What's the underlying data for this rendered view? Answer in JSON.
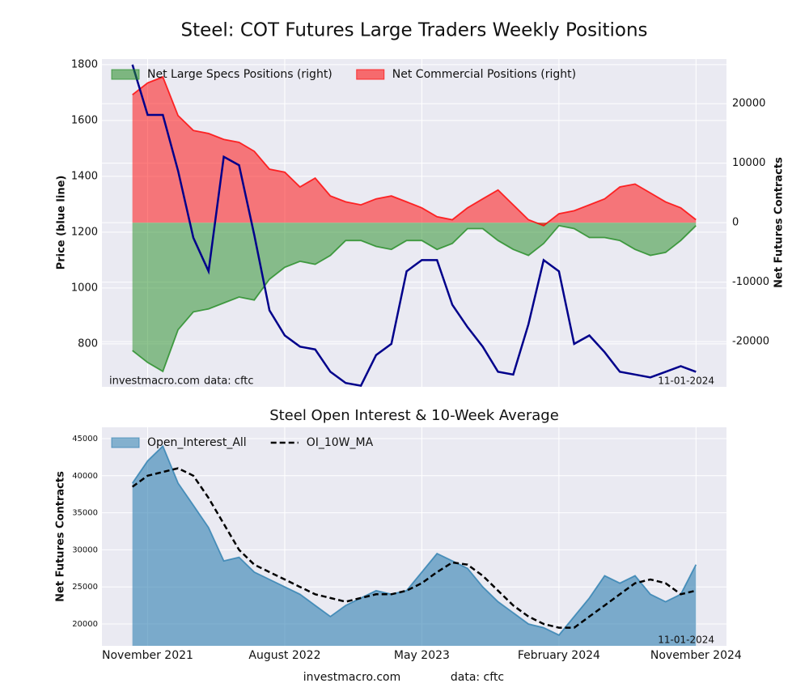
{
  "chart_data": [
    {
      "type": "area",
      "title": "Steel: COT Futures Large Traders Weekly Positions",
      "ylabel": "Price (blue line)",
      "y2label": "Net Futures Contracts",
      "source": "investmacro.com",
      "note": "data: cftc",
      "date": "11-01-2024",
      "x": [
        "2021-10",
        "2021-11",
        "2021-12",
        "2022-01",
        "2022-02",
        "2022-03",
        "2022-04",
        "2022-05",
        "2022-06",
        "2022-07",
        "2022-08",
        "2022-09",
        "2022-10",
        "2022-11",
        "2022-12",
        "2023-01",
        "2023-02",
        "2023-03",
        "2023-04",
        "2023-05",
        "2023-06",
        "2023-07",
        "2023-08",
        "2023-09",
        "2023-10",
        "2023-11",
        "2023-12",
        "2024-01",
        "2024-02",
        "2024-03",
        "2024-04",
        "2024-05",
        "2024-06",
        "2024-07",
        "2024-08",
        "2024-09",
        "2024-10",
        "2024-11"
      ],
      "xlim": [
        "2021-08",
        "2025-01"
      ],
      "ylim": [
        646,
        1820
      ],
      "yticks": [
        800,
        1000,
        1200,
        1400,
        1600,
        1800
      ],
      "y2lim": [
        -27600,
        27500
      ],
      "y2ticks": [
        -20000,
        -10000,
        0,
        10000,
        20000
      ],
      "grid": true,
      "legend": "upper left",
      "line": {
        "color": "#00008b",
        "values": [
          1800,
          1620,
          1620,
          1420,
          1180,
          1060,
          1470,
          1440,
          1190,
          920,
          830,
          790,
          780,
          700,
          660,
          650,
          760,
          800,
          1060,
          1100,
          1100,
          940,
          860,
          790,
          700,
          690,
          870,
          1100,
          1060,
          800,
          830,
          770,
          700,
          690,
          680,
          700,
          720,
          700
        ]
      },
      "series": [
        {
          "name": "Net Large Specs Positions (right)",
          "color": "#228b22",
          "axis": "y2",
          "values": [
            -21500,
            -23500,
            -25000,
            -18000,
            -15000,
            -14500,
            -13500,
            -12500,
            -13000,
            -9500,
            -7500,
            -6500,
            -7000,
            -5500,
            -3000,
            -3000,
            -4000,
            -4500,
            -3000,
            -3000,
            -4500,
            -3500,
            -1000,
            -1000,
            -3000,
            -4500,
            -5500,
            -3500,
            -500,
            -1000,
            -2500,
            -2500,
            -3000,
            -4500,
            -5500,
            -5000,
            -3000,
            -500
          ]
        },
        {
          "name": "Net Commercial Positions (right)",
          "color": "#ff0000",
          "axis": "y2",
          "values": [
            21500,
            23500,
            24500,
            18000,
            15500,
            15000,
            14000,
            13500,
            12000,
            9000,
            8500,
            6000,
            7500,
            4500,
            3500,
            3000,
            4000,
            4500,
            3500,
            2500,
            1000,
            500,
            2500,
            4000,
            5500,
            3000,
            500,
            -500,
            1500,
            2000,
            3000,
            4000,
            6000,
            6500,
            5000,
            3500,
            2500,
            500
          ]
        }
      ]
    },
    {
      "type": "area",
      "title": "Steel Open Interest & 10-Week Average",
      "ylabel": "Net Futures Contracts",
      "source": "investmacro.com",
      "note": "data: cftc",
      "date": "11-01-2024",
      "x": [
        "2021-10",
        "2021-11",
        "2021-12",
        "2022-01",
        "2022-02",
        "2022-03",
        "2022-04",
        "2022-05",
        "2022-06",
        "2022-07",
        "2022-08",
        "2022-09",
        "2022-10",
        "2022-11",
        "2022-12",
        "2023-01",
        "2023-02",
        "2023-03",
        "2023-04",
        "2023-05",
        "2023-06",
        "2023-07",
        "2023-08",
        "2023-09",
        "2023-10",
        "2023-11",
        "2023-12",
        "2024-01",
        "2024-02",
        "2024-03",
        "2024-04",
        "2024-05",
        "2024-06",
        "2024-07",
        "2024-08",
        "2024-09",
        "2024-10",
        "2024-11"
      ],
      "xlim": [
        "2021-08",
        "2025-01"
      ],
      "xticks": [
        {
          "value": "2021-11",
          "label": "November 2021"
        },
        {
          "value": "2022-08",
          "label": "August 2022"
        },
        {
          "value": "2023-05",
          "label": "May 2023"
        },
        {
          "value": "2024-02",
          "label": "February 2024"
        },
        {
          "value": "2024-11",
          "label": "November 2024"
        }
      ],
      "ylim": [
        17050,
        46530
      ],
      "yticks": [
        20000,
        25000,
        30000,
        35000,
        40000,
        45000
      ],
      "grid": true,
      "legend": "upper left",
      "series": [
        {
          "name": "Open_Interest_All",
          "color": "#2e7fb0",
          "style": "area",
          "values": [
            39000,
            42000,
            44000,
            39000,
            36000,
            33000,
            28500,
            29000,
            27000,
            26000,
            25000,
            24000,
            22500,
            21000,
            22500,
            23500,
            24500,
            24000,
            24500,
            27000,
            29500,
            28500,
            27500,
            25000,
            23000,
            21500,
            20000,
            19500,
            18500,
            21000,
            23500,
            26500,
            25500,
            26500,
            24000,
            23000,
            24000,
            28000
          ]
        },
        {
          "name": "OI_10W_MA",
          "color": "#000000",
          "style": "dashed",
          "values": [
            38500,
            40000,
            40500,
            41000,
            40000,
            37000,
            33500,
            30000,
            28000,
            27000,
            26000,
            25000,
            24000,
            23500,
            23000,
            23500,
            24000,
            24000,
            24500,
            25500,
            27000,
            28300,
            28000,
            26500,
            24500,
            22500,
            21000,
            20000,
            19500,
            19500,
            21000,
            22500,
            24000,
            25500,
            26000,
            25500,
            24000,
            24500
          ]
        }
      ]
    }
  ]
}
